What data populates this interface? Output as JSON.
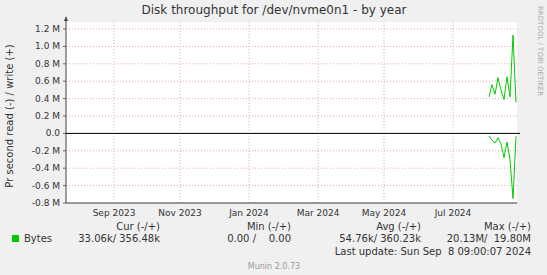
{
  "chart_data": {
    "type": "line",
    "title": "Disk throughput for /dev/nvme0n1 - by year",
    "y_label": "Pr second read (-) / write (+)",
    "side_text": "RRDTOOL / TOBI OETIKER",
    "grid": true,
    "ylim": [
      -800000,
      1200000
    ],
    "yticks": [
      {
        "value": -800000,
        "label": "-0.8 M"
      },
      {
        "value": -600000,
        "label": "-0.6 M"
      },
      {
        "value": -400000,
        "label": "-0.4 M"
      },
      {
        "value": -200000,
        "label": "-0.2 M"
      },
      {
        "value": 0,
        "label": "0.0"
      },
      {
        "value": 200000,
        "label": "0.2 M"
      },
      {
        "value": 400000,
        "label": "0.4 M"
      },
      {
        "value": 600000,
        "label": "0.6 M"
      },
      {
        "value": 800000,
        "label": "0.8 M"
      },
      {
        "value": 1000000,
        "label": "1.0 M"
      },
      {
        "value": 1200000,
        "label": "1.2 M"
      }
    ],
    "categories": [
      null,
      null,
      null,
      null,
      null,
      null,
      null,
      null,
      null,
      null,
      null,
      null,
      null,
      null,
      null,
      null,
      "Sep 2023",
      null,
      null,
      null,
      null,
      null,
      null,
      null,
      null,
      null,
      null,
      null,
      null,
      null,
      null,
      null,
      null,
      null,
      null,
      null,
      null,
      null,
      "Nov 2023",
      null,
      null,
      null,
      null,
      null,
      null,
      null,
      null,
      null,
      null,
      null,
      null,
      null,
      null,
      null,
      null,
      null,
      null,
      null,
      null,
      null,
      null,
      "Jan 2024",
      null,
      null,
      null,
      null,
      null,
      null,
      null,
      null,
      null,
      null,
      null,
      null,
      null,
      null,
      null,
      null,
      null,
      null,
      null,
      null,
      null,
      null,
      "Mar 2024",
      null,
      null,
      null,
      null,
      null,
      null,
      null,
      null,
      null,
      null,
      null,
      null,
      null,
      null,
      null,
      null,
      null,
      null,
      null,
      null,
      null,
      "May 2024",
      null,
      null,
      null,
      null,
      null,
      null,
      null,
      null,
      null,
      null,
      null,
      null,
      null,
      null,
      null,
      null,
      null,
      null,
      null,
      null,
      null,
      null,
      "Jul 2024",
      null,
      null,
      null,
      null,
      null,
      null,
      null,
      null,
      null,
      null,
      null,
      null,
      null,
      null,
      null,
      null,
      null,
      null,
      null,
      null,
      null
    ],
    "series": [
      {
        "name": "Bytes",
        "color": "#00cc00",
        "values": [
          null,
          null,
          null,
          null,
          null,
          null,
          null,
          null,
          null,
          null,
          null,
          null,
          null,
          null,
          null,
          null,
          null,
          null,
          null,
          null,
          null,
          null,
          null,
          null,
          null,
          null,
          null,
          null,
          null,
          null,
          null,
          null,
          null,
          null,
          null,
          null,
          null,
          null,
          null,
          null,
          null,
          null,
          null,
          null,
          null,
          null,
          null,
          null,
          null,
          null,
          null,
          null,
          null,
          null,
          null,
          null,
          null,
          null,
          null,
          null,
          null,
          null,
          null,
          null,
          null,
          null,
          null,
          null,
          null,
          null,
          null,
          null,
          null,
          null,
          null,
          null,
          null,
          null,
          null,
          null,
          null,
          null,
          null,
          null,
          null,
          null,
          null,
          null,
          null,
          null,
          null,
          null,
          null,
          null,
          null,
          null,
          null,
          null,
          null,
          null,
          null,
          null,
          null,
          null,
          null,
          null,
          null,
          null,
          null,
          null,
          null,
          null,
          null,
          null,
          null,
          null,
          null,
          null,
          null,
          null,
          null,
          null,
          null,
          null,
          null,
          null,
          null,
          null,
          null,
          null,
          null,
          null,
          null,
          null,
          null,
          null,
          null,
          null,
          null,
          null,
          null,
          420000,
          560000,
          450000,
          640000,
          500000,
          390000,
          650000,
          420000,
          1130000,
          356480
        ]
      },
      {
        "color": "#00cc00",
        "values": [
          null,
          null,
          null,
          null,
          null,
          null,
          null,
          null,
          null,
          null,
          null,
          null,
          null,
          null,
          null,
          null,
          null,
          null,
          null,
          null,
          null,
          null,
          null,
          null,
          null,
          null,
          null,
          null,
          null,
          null,
          null,
          null,
          null,
          null,
          null,
          null,
          null,
          null,
          null,
          null,
          null,
          null,
          null,
          null,
          null,
          null,
          null,
          null,
          null,
          null,
          null,
          null,
          null,
          null,
          null,
          null,
          null,
          null,
          null,
          null,
          null,
          null,
          null,
          null,
          null,
          null,
          null,
          null,
          null,
          null,
          null,
          null,
          null,
          null,
          null,
          null,
          null,
          null,
          null,
          null,
          null,
          null,
          null,
          null,
          null,
          null,
          null,
          null,
          null,
          null,
          null,
          null,
          null,
          null,
          null,
          null,
          null,
          null,
          null,
          null,
          null,
          null,
          null,
          null,
          null,
          null,
          null,
          null,
          null,
          null,
          null,
          null,
          null,
          null,
          null,
          null,
          null,
          null,
          null,
          null,
          null,
          null,
          null,
          null,
          null,
          null,
          null,
          null,
          null,
          null,
          null,
          null,
          null,
          null,
          null,
          null,
          null,
          null,
          null,
          null,
          null,
          -30000,
          -80000,
          -110000,
          -50000,
          -120000,
          -280000,
          -100000,
          -300000,
          -750000,
          -33060
        ]
      }
    ],
    "legend_stats": [
      {
        "label": "Cur (-/+)",
        "value": "33.06k/ 356.48k"
      },
      {
        "label": "Min (-/+)",
        "value": "0.00 /    0.00"
      },
      {
        "label": "Avg (-/+)",
        "value": "54.76k/ 360.23k"
      },
      {
        "label": "Max (-/+)",
        "value": "20.13M/  19.80M"
      }
    ],
    "footer": "Last update: Sun Sep  8 09:00:07 2024",
    "credit": "Munin 2.0.73"
  }
}
